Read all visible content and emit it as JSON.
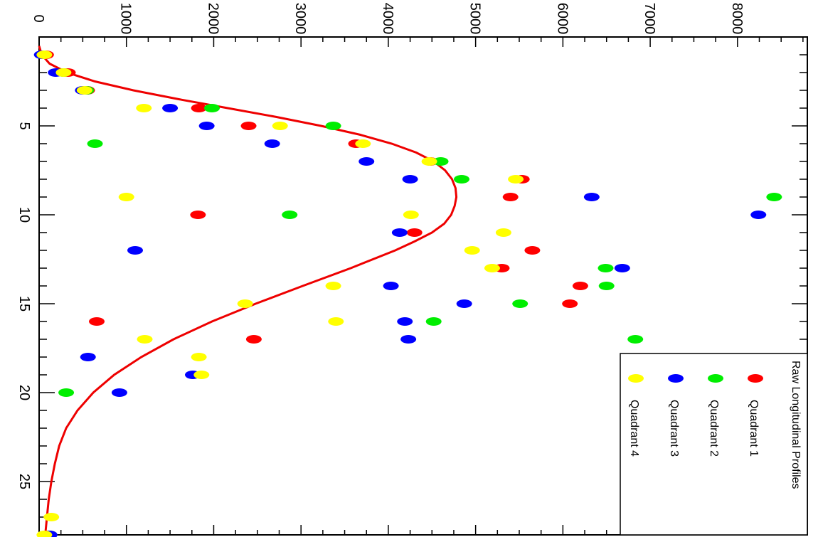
{
  "chart_data": {
    "type": "scatter",
    "orientation": "rotated-90-clockwise",
    "title": "",
    "xlabel": "",
    "ylabel": "",
    "xlim": [
      0,
      28
    ],
    "ylim": [
      0,
      8800
    ],
    "x_major_ticks": [
      5,
      10,
      15,
      20,
      25
    ],
    "y_major_ticks": [
      0,
      1000,
      2000,
      3000,
      4000,
      5000,
      6000,
      7000,
      8000
    ],
    "x_tick_labels": [
      "5",
      "10",
      "15",
      "20",
      "25"
    ],
    "y_tick_labels": [
      "0",
      "1000",
      "2000",
      "3000",
      "4000",
      "5000",
      "6000",
      "7000",
      "8000"
    ],
    "grid": false,
    "legend": {
      "title": "Raw Longitudinal Profiles",
      "placement": "bottom-right"
    },
    "series": [
      {
        "name": "Quadrant 1",
        "color": "#ff0000",
        "x": [
          1,
          2,
          3,
          4,
          5,
          6,
          7,
          8,
          9,
          10,
          11,
          12,
          13,
          14,
          15,
          16,
          17,
          28
        ],
        "y": [
          80,
          330,
          550,
          1830,
          2400,
          3630,
          4480,
          5530,
          5400,
          1820,
          4300,
          5650,
          5300,
          6200,
          6080,
          660,
          2460,
          100
        ]
      },
      {
        "name": "Quadrant 2",
        "color": "#00ee00",
        "x": [
          1,
          2,
          3,
          4,
          5,
          6,
          7,
          8,
          9,
          10,
          13,
          14,
          15,
          16,
          17,
          20,
          28
        ],
        "y": [
          50,
          280,
          540,
          1980,
          3370,
          640,
          4600,
          4840,
          8420,
          2870,
          6490,
          6500,
          5510,
          4520,
          6830,
          310,
          120
        ]
      },
      {
        "name": "Quadrant 3",
        "color": "#0000ff",
        "x": [
          1,
          2,
          3,
          4,
          5,
          6,
          7,
          8,
          9,
          10,
          11,
          12,
          13,
          14,
          15,
          16,
          17,
          18,
          19,
          20,
          28
        ],
        "y": [
          30,
          190,
          500,
          1500,
          1920,
          2670,
          3750,
          4250,
          6330,
          8240,
          4130,
          1100,
          6680,
          4030,
          4870,
          4190,
          4230,
          560,
          1760,
          920,
          120
        ]
      },
      {
        "name": "Quadrant 4",
        "color": "#ffff00",
        "x": [
          1,
          2,
          3,
          4,
          5,
          6,
          7,
          8,
          9,
          10,
          11,
          12,
          13,
          14,
          15,
          16,
          17,
          18,
          19,
          27,
          28
        ],
        "y": [
          60,
          280,
          520,
          1200,
          2760,
          3710,
          4470,
          5460,
          1000,
          4260,
          5320,
          4960,
          5190,
          3370,
          2360,
          3400,
          1210,
          1830,
          1860,
          140,
          60
        ]
      }
    ],
    "fit_curve": {
      "color": "#ee0000",
      "x": [
        0.5,
        1,
        1.5,
        2,
        2.5,
        3,
        3.5,
        4,
        4.5,
        5,
        5.5,
        6,
        6.5,
        7,
        7.5,
        8,
        8.5,
        9,
        9.5,
        10,
        10.5,
        11,
        11.5,
        12,
        13,
        14,
        15,
        16,
        17,
        18,
        19,
        20,
        21,
        22,
        23,
        24,
        25,
        26,
        27,
        28
      ],
      "y": [
        0,
        30,
        120,
        320,
        640,
        1080,
        1600,
        2160,
        2720,
        3230,
        3680,
        4040,
        4320,
        4520,
        4650,
        4730,
        4770,
        4780,
        4760,
        4720,
        4640,
        4500,
        4300,
        4080,
        3570,
        3020,
        2480,
        1980,
        1540,
        1170,
        860,
        620,
        440,
        310,
        230,
        180,
        140,
        110,
        90,
        70
      ]
    }
  }
}
